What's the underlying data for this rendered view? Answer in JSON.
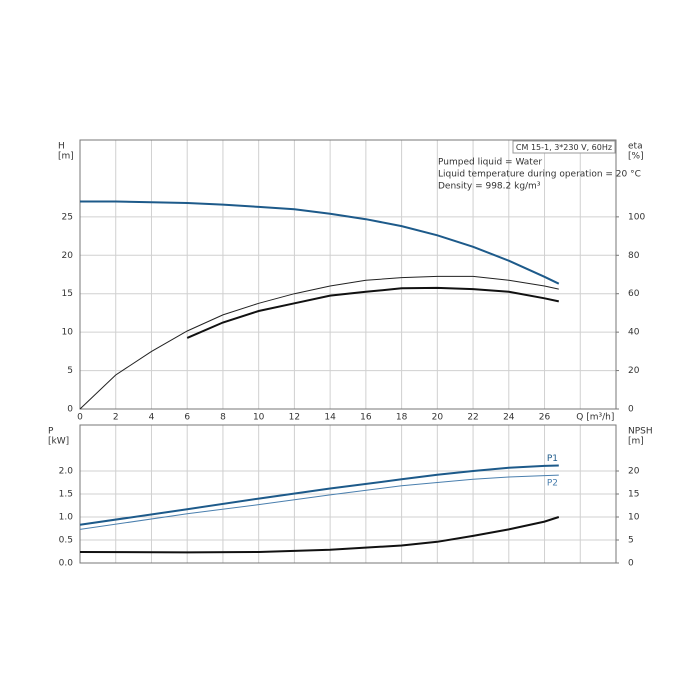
{
  "chart_data": [
    {
      "type": "line",
      "title": "CM 15-1, 3*230 V, 60Hz",
      "annotations": [
        "Pumped liquid = Water",
        "Liquid temperature during operation = 20 °C",
        "Density = 998.2 kg/m³"
      ],
      "ylabel": "H",
      "ylabel_unit": "[m]",
      "y2label": "eta",
      "y2label_unit": "[%]",
      "xlim": [
        0,
        30
      ],
      "xticks": [
        0,
        2,
        4,
        6,
        8,
        10,
        12,
        14,
        16,
        18,
        20,
        22,
        24,
        26,
        {
          "value": 28,
          "label": "Q [m³/h]"
        }
      ],
      "ylim": [
        0,
        35
      ],
      "yticks": [
        0,
        5,
        10,
        15,
        20,
        25
      ],
      "y2lim": [
        0,
        140
      ],
      "y2ticks": [
        0,
        20,
        40,
        60,
        80,
        100
      ],
      "grid": true,
      "series": [
        {
          "color": "#1d5a8a",
          "line_width": 2,
          "axis": "y",
          "x": [
            0,
            2,
            4,
            6,
            8,
            10,
            12,
            14,
            16,
            18,
            20,
            22,
            24,
            26,
            26.8
          ],
          "values": [
            27,
            27,
            26.9,
            26.8,
            26.6,
            26.3,
            26.0,
            25.4,
            24.7,
            23.8,
            22.6,
            21.1,
            19.3,
            17.2,
            16.3
          ]
        },
        {
          "color": "#222222",
          "line_width": 1,
          "axis": "y2",
          "x": [
            0,
            2,
            4,
            6,
            8,
            10,
            12,
            14,
            16,
            18,
            20,
            22,
            24,
            26,
            26.8
          ],
          "values": [
            0,
            17.7,
            30,
            40.6,
            49,
            55,
            60,
            64,
            67,
            68.4,
            69,
            69,
            67,
            64,
            62.4
          ]
        },
        {
          "color": "#111111",
          "line_width": 2,
          "axis": "y2",
          "x": [
            6,
            8,
            10,
            12,
            14,
            16,
            18,
            20,
            22,
            24,
            26,
            26.8
          ],
          "values": [
            37,
            45,
            51,
            55,
            59,
            61,
            62.8,
            63,
            62.4,
            61,
            57.6,
            56
          ]
        }
      ]
    },
    {
      "type": "line",
      "ylabel": "P",
      "ylabel_unit": "[kW]",
      "y2label": "NPSH",
      "y2label_unit": "[m]",
      "ylim": [
        0,
        3.0
      ],
      "yticks": [
        {
          "value": 0,
          "label": "0.0"
        },
        0.5,
        {
          "value": 1,
          "label": "1.0"
        },
        1.5,
        {
          "value": 2,
          "label": "2.0"
        }
      ],
      "y2lim": [
        0,
        30
      ],
      "y2ticks": [
        0,
        5,
        10,
        15,
        20
      ],
      "grid": true,
      "series": [
        {
          "name": "P1",
          "color": "#1d5a8a",
          "line_width": 2,
          "axis": "y",
          "x": [
            0,
            6,
            10,
            14,
            18,
            20,
            22,
            24,
            26,
            26.8
          ],
          "values": [
            0.83,
            1.17,
            1.4,
            1.62,
            1.82,
            1.92,
            2.0,
            2.07,
            2.11,
            2.12
          ]
        },
        {
          "name": "P2",
          "color": "#4a7fae",
          "line_width": 1,
          "axis": "y",
          "x": [
            0,
            6,
            10,
            14,
            18,
            22,
            24,
            26,
            26.8
          ],
          "values": [
            0.73,
            1.07,
            1.27,
            1.48,
            1.68,
            1.82,
            1.87,
            1.9,
            1.91
          ]
        },
        {
          "color": "#111111",
          "line_width": 2,
          "axis": "y2",
          "x": [
            0,
            6,
            10,
            14,
            18,
            20,
            22,
            24,
            26,
            26.8
          ],
          "values": [
            2.4,
            2.3,
            2.4,
            2.9,
            3.8,
            4.6,
            5.9,
            7.3,
            9.0,
            10.0
          ]
        }
      ]
    }
  ]
}
